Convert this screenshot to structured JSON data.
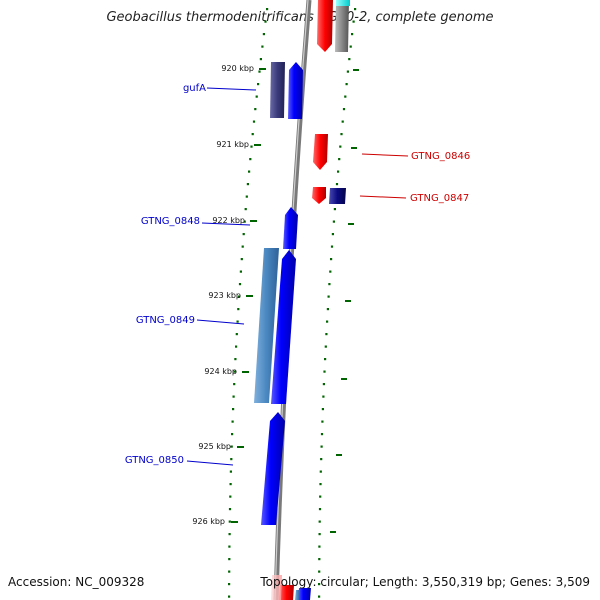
{
  "title": "Geobacillus thermodenitrificans NG80-2, complete genome",
  "footer": {
    "accession": "Accession: NC_009328",
    "stats": "Topology: circular; Length: 3,550,319 bp; Genes: 3,509"
  },
  "colors": {
    "forward_gene": "#0000ff",
    "forward_gene_dark": "#3a3a7a",
    "forward_gene_light": "#4a87c0",
    "reverse_gene": "#ff0000",
    "reverse_gene_dark": "#0a0a80",
    "backbone": "#888888",
    "tick": "#006400"
  },
  "ticks": [
    {
      "label": "920 kbp"
    },
    {
      "label": "921 kbp"
    },
    {
      "label": "922 kbp"
    },
    {
      "label": "923 kbp"
    },
    {
      "label": "924 kbp"
    },
    {
      "label": "925 kbp"
    },
    {
      "label": "926 kbp"
    }
  ],
  "gene_labels": [
    {
      "name": "gufA",
      "strand": "forward"
    },
    {
      "name": "GTNG_0846",
      "strand": "reverse"
    },
    {
      "name": "GTNG_0847",
      "strand": "reverse"
    },
    {
      "name": "GTNG_0848",
      "strand": "forward"
    },
    {
      "name": "GTNG_0849",
      "strand": "forward"
    },
    {
      "name": "GTNG_0850",
      "strand": "forward"
    }
  ]
}
